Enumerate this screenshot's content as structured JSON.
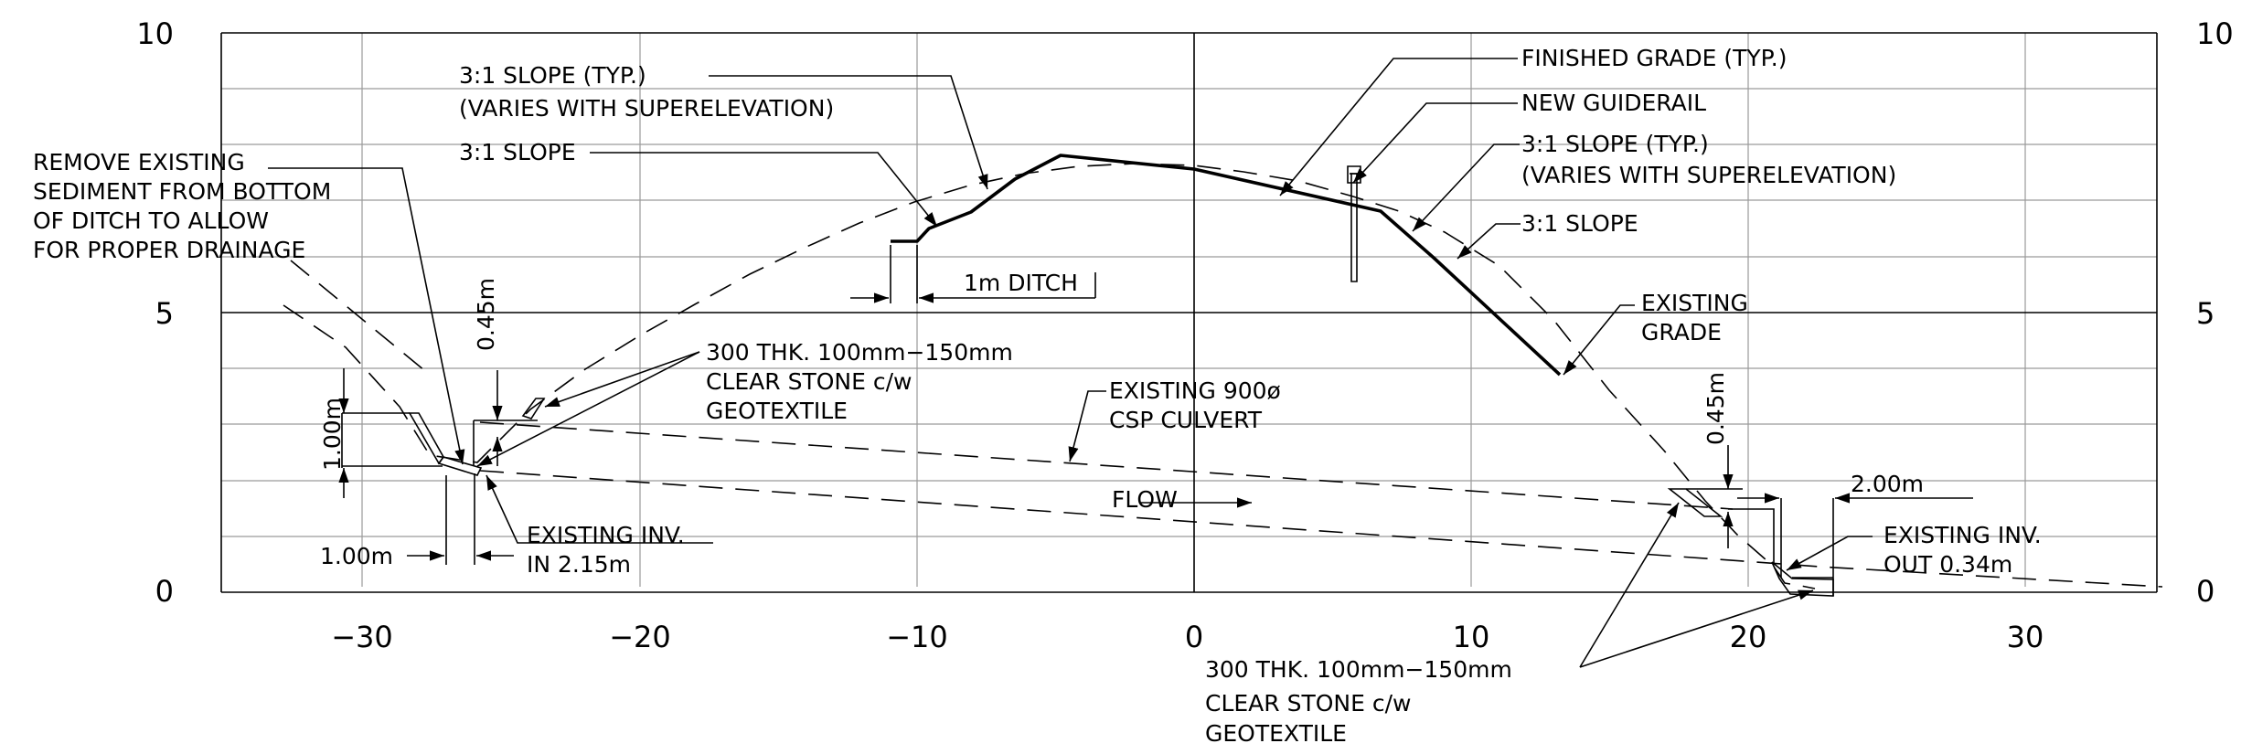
{
  "axis": {
    "x_ticks": [
      "−30",
      "−20",
      "−10",
      "0",
      "10",
      "20",
      "30"
    ],
    "y_ticks_left": [
      "10",
      "5",
      "0"
    ],
    "y_ticks_right": [
      "10",
      "5",
      "0"
    ]
  },
  "labels": {
    "slope_typ_1": "3:1 SLOPE (TYP.)",
    "slope_typ_1b": "(VARIES WITH SUPERELEVATION)",
    "slope_left": "3:1 SLOPE",
    "remove_1": "REMOVE EXISTING",
    "remove_2": "SEDIMENT FROM BOTTOM",
    "remove_3": "OF DITCH TO ALLOW",
    "remove_4": "FOR PROPER DRAINAGE",
    "finished_grade": "FINISHED GRADE (TYP.)",
    "new_guiderail": "NEW GUIDERAIL",
    "slope_typ_2": "3:1 SLOPE (TYP.)",
    "slope_typ_2b": "(VARIES WITH SUPERELEVATION)",
    "slope_right": "3:1 SLOPE",
    "ditch": "1m DITCH",
    "existing_grade_1": "EXISTING",
    "existing_grade_2": "GRADE",
    "stone_l1": "300 THK. 100mm−150mm",
    "stone_l2": "CLEAR STONE c/w",
    "stone_l3": "GEOTEXTILE",
    "culvert_1": "EXISTING 900ø",
    "culvert_2": "CSP CULVERT",
    "flow": "FLOW",
    "dim_045_left": "0.45m",
    "dim_100_vert": "1.00m",
    "dim_100_horiz": "1.00m",
    "inv_in_1": "EXISTING INV.",
    "inv_in_2": "IN 2.15m",
    "dim_045_right": "0.45m",
    "dim_200": "2.00m",
    "inv_out_1": "EXISTING INV.",
    "inv_out_2": "OUT 0.34m",
    "stone_r1": "300 THK. 100mm−150mm",
    "stone_r2": "CLEAR STONE c/w",
    "stone_r3": "GEOTEXTILE"
  }
}
